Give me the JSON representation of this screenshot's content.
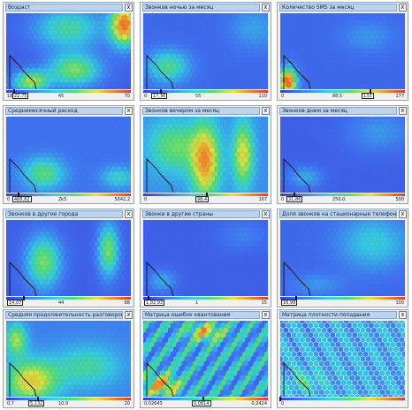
{
  "panels": [
    {
      "title": "Возраст",
      "min": "18",
      "mid": "45",
      "max": "70",
      "value": "22,75",
      "grad": "age"
    },
    {
      "title": "Звонков ночью за месяц",
      "min": "0",
      "mid": "55",
      "max": "110",
      "value": "17,36",
      "grad": "night"
    },
    {
      "title": "Количество SMS за месяц",
      "min": "0",
      "mid": "88,5",
      "max": "177",
      "value": "133",
      "grad": "sms"
    },
    {
      "title": "Среднемесячный расход",
      "min": "0",
      "mid": "2k5",
      "max": "5042,2",
      "value": "488,82",
      "grad": "spend"
    },
    {
      "title": "Звонков вечером за месяц",
      "min": "0",
      "mid": "",
      "max": "167",
      "value": "98,4",
      "grad": "evening"
    },
    {
      "title": "Звонков днем за месяц",
      "min": "0",
      "mid": "250,0",
      "max": "500",
      "value": "31,86",
      "grad": "day"
    },
    {
      "title": "Звонков в другие города",
      "min": "0",
      "mid": "44",
      "max": "88",
      "value": "14,07",
      "grad": "cities"
    },
    {
      "title": "Звонки в другие страны",
      "min": "0",
      "mid": "1",
      "max": "15",
      "value": "1,02,93",
      "grad": "countries"
    },
    {
      "title": "Доля звонков на стационарные телефоны",
      "min": "0",
      "mid": "",
      "max": "100",
      "value": "16,99",
      "grad": "fixed"
    },
    {
      "title": "Средняя продолжительность разговоров",
      "min": "0,7",
      "mid": "10,9",
      "max": "20",
      "value": "5,132",
      "grad": "duration"
    },
    {
      "title": "Матрица ошибок квантования",
      "min": "0,02643",
      "mid": "0,0814",
      "max": "0,2424",
      "value": "",
      "grad": "qerr"
    },
    {
      "title": "Матрица плотности попадания",
      "min": "0",
      "mid": "",
      "max": "",
      "value": "",
      "grad": "density"
    }
  ],
  "close_glyph": "x",
  "colors": {
    "low": "#3b3bd9",
    "mid": "#34d4e0",
    "high": "#e23a2a",
    "panel_bg": "#f0f0f0",
    "title_bg": "#bcd3ee"
  }
}
